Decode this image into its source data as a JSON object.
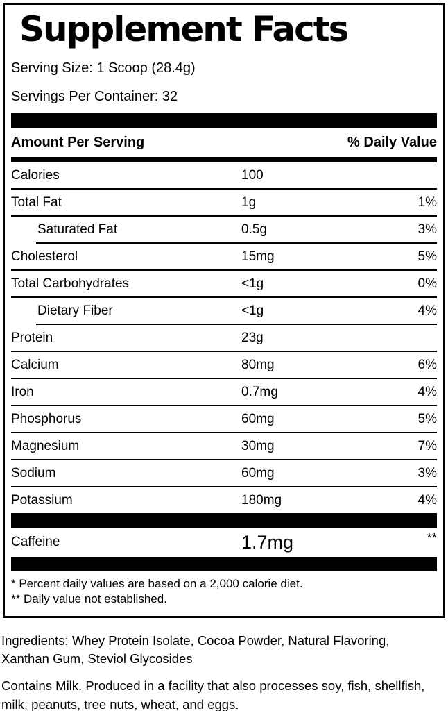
{
  "colors": {
    "ink": "#000000",
    "paper": "#ffffff"
  },
  "label": {
    "title": "Supplement Facts",
    "serving_size": "Serving Size: 1 Scoop (28.4g)",
    "servings_per_container": "Servings Per Container: 32"
  },
  "table": {
    "header": {
      "amount_col": "Amount Per Serving",
      "dv_col": "% Daily Value"
    },
    "rows": [
      {
        "label": "Calories",
        "amount": "100",
        "dv": "",
        "indent": false,
        "sep": "full"
      },
      {
        "label": "Total Fat",
        "amount": "1g",
        "dv": "1%",
        "indent": false,
        "sep": "full"
      },
      {
        "label": "Saturated Fat",
        "amount": "0.5g",
        "dv": "3%",
        "indent": true,
        "sep": "indent"
      },
      {
        "label": "Cholesterol",
        "amount": "15mg",
        "dv": "5%",
        "indent": false,
        "sep": "full"
      },
      {
        "label": "Total Carbohydrates",
        "amount": "<1g",
        "dv": "0%",
        "indent": false,
        "sep": "full"
      },
      {
        "label": "Dietary Fiber",
        "amount": "<1g",
        "dv": "4%",
        "indent": true,
        "sep": "indent"
      },
      {
        "label": "Protein",
        "amount": "23g",
        "dv": "",
        "indent": false,
        "sep": "full"
      },
      {
        "label": "Calcium",
        "amount": "80mg",
        "dv": "6%",
        "indent": false,
        "sep": "full"
      },
      {
        "label": "Iron",
        "amount": "0.7mg",
        "dv": "4%",
        "indent": false,
        "sep": "full"
      },
      {
        "label": "Phosphorus",
        "amount": "60mg",
        "dv": "5%",
        "indent": false,
        "sep": "full"
      },
      {
        "label": "Magnesium",
        "amount": "30mg",
        "dv": "7%",
        "indent": false,
        "sep": "full"
      },
      {
        "label": "Sodium",
        "amount": "60mg",
        "dv": "3%",
        "indent": false,
        "sep": "full"
      },
      {
        "label": "Potassium",
        "amount": "180mg",
        "dv": "4%",
        "indent": false,
        "sep": "none"
      }
    ],
    "caffeine": {
      "label": "Caffeine",
      "amount": "1.7mg",
      "dv": "**"
    }
  },
  "footnotes": {
    "line1": "* Percent daily values are based on a 2,000 calorie diet.",
    "line2": "** Daily value not established."
  },
  "ingredients": "Ingredients: Whey Protein Isolate, Cocoa Powder, Natural Flavoring,\nXanthan Gum, Steviol Glycosides",
  "allergens": "Contains Milk. Produced in a facility that also processes soy, fish, shellfish,\nmilk, peanuts, tree nuts, wheat, and eggs."
}
